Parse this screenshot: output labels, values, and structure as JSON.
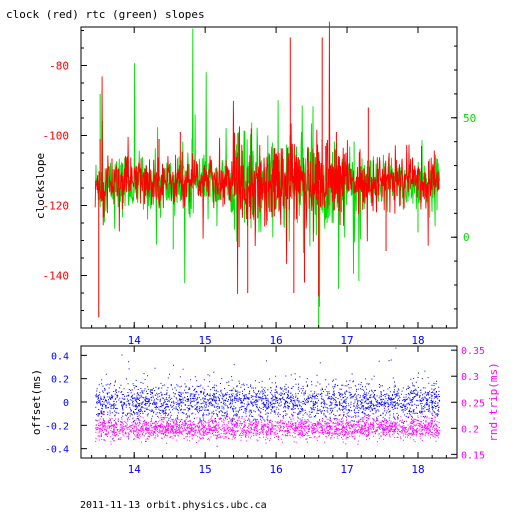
{
  "title": "clock (red) rtc (green) slopes",
  "footer": "2011-11-13 orbit.physics.ubc.ca",
  "colors": {
    "clock": "#ff0000",
    "rtc": "#00dd00",
    "offset": "#0000ff",
    "rndtrip": "#ff00ff",
    "frame": "#000000"
  },
  "chart_data": [
    {
      "type": "line",
      "title": "clock (red) rtc (green) slopes",
      "ylabel": "clockslope",
      "x_ticks": [
        14,
        15,
        16,
        17,
        18
      ],
      "xlim": [
        13.25,
        18.55
      ],
      "ylim": [
        -155,
        -69
      ],
      "y_ticks": [
        -80,
        -100,
        -120,
        -140
      ],
      "y2lim": [
        -38,
        88
      ],
      "y2_ticks": [
        50,
        0
      ],
      "series": [
        {
          "name": "clock",
          "color": "#ff0000",
          "axis": "left",
          "baseline": -113,
          "x_range": [
            13.45,
            18.3
          ],
          "spikes": [
            {
              "x": 13.5,
              "y": -152
            },
            {
              "x": 13.52,
              "y": -101
            },
            {
              "x": 14.35,
              "y": -101
            },
            {
              "x": 14.65,
              "y": -99
            },
            {
              "x": 15.6,
              "y": -145
            },
            {
              "x": 15.65,
              "y": -98
            },
            {
              "x": 16.2,
              "y": -72
            },
            {
              "x": 16.25,
              "y": -145
            },
            {
              "x": 16.4,
              "y": -142
            },
            {
              "x": 16.6,
              "y": -146
            },
            {
              "x": 16.65,
              "y": -72
            },
            {
              "x": 16.7,
              "y": -103
            },
            {
              "x": 16.85,
              "y": -99
            },
            {
              "x": 17.55,
              "y": -133
            },
            {
              "x": 17.3,
              "y": -92
            },
            {
              "x": 18.05,
              "y": -103
            }
          ]
        },
        {
          "name": "rtc",
          "color": "#00dd00",
          "axis": "right",
          "baseline": 22,
          "x_range": [
            13.45,
            18.3
          ],
          "spikes": [
            {
              "x": 13.52,
              "y": 60
            },
            {
              "x": 14.55,
              "y": -5
            },
            {
              "x": 15.55,
              "y": 42
            },
            {
              "x": 16.6,
              "y": -38
            },
            {
              "x": 17.1,
              "y": 40
            },
            {
              "x": 18.0,
              "y": 2
            }
          ]
        }
      ]
    },
    {
      "type": "scatter",
      "ylabel": "offset(ms)",
      "y2label": "rnd-trip(ms)",
      "x_ticks": [
        14,
        15,
        16,
        17,
        18
      ],
      "xlim": [
        13.25,
        18.55
      ],
      "ylim": [
        -0.48,
        0.48
      ],
      "y_ticks": [
        0.4,
        0.2,
        0,
        -0.2,
        -0.4
      ],
      "y_tick_labels": [
        "0.4",
        "0.2",
        "0",
        "-0.2",
        "-0.4"
      ],
      "y2lim": [
        0.143,
        0.358
      ],
      "y2_ticks": [
        0.35,
        0.3,
        0.25,
        0.2,
        0.15
      ],
      "y2_tick_labels": [
        "0.35",
        "0.3",
        "0.25",
        "0.2",
        "0.15"
      ],
      "series": [
        {
          "name": "offset",
          "color": "#0000ff",
          "axis": "left",
          "mean": 0.0,
          "spread": 0.08,
          "x_range": [
            13.45,
            18.3
          ]
        },
        {
          "name": "rnd-trip",
          "color": "#ff00ff",
          "axis": "right",
          "mean": 0.2,
          "spread": 0.01,
          "x_range": [
            13.45,
            18.3
          ]
        }
      ]
    }
  ]
}
